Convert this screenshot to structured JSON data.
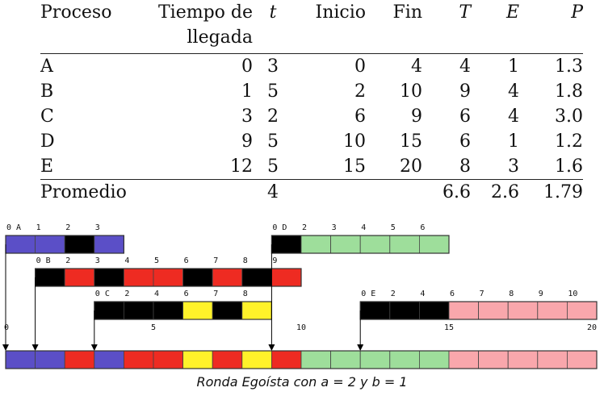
{
  "table": {
    "headers": [
      "Proceso",
      "Tiempo de llegada",
      "t",
      "Inicio",
      "Fin",
      "T",
      "E",
      "P"
    ],
    "rows": [
      [
        "A",
        "0",
        "3",
        "0",
        "4",
        "4",
        "1",
        "1.3"
      ],
      [
        "B",
        "1",
        "5",
        "2",
        "10",
        "9",
        "4",
        "1.8"
      ],
      [
        "C",
        "3",
        "2",
        "6",
        "9",
        "6",
        "4",
        "3.0"
      ],
      [
        "D",
        "9",
        "5",
        "10",
        "15",
        "6",
        "1",
        "1.2"
      ],
      [
        "E",
        "12",
        "5",
        "15",
        "20",
        "8",
        "3",
        "1.6"
      ]
    ],
    "average": [
      "Promedio",
      "",
      "4",
      "",
      "",
      "6.6",
      "2.6",
      "1.79"
    ]
  },
  "schedule": {
    "colors": {
      "A": "#5b4fc7",
      "B": "#ee2b22",
      "C": "#fff22a",
      "D": "#9ede9b",
      "E": "#f9a7ac",
      "wait": "#000000"
    },
    "processes": [
      {
        "name": "A",
        "arrival": 0,
        "slots": [
          "A",
          "A",
          "wait",
          "A"
        ],
        "tick_labels": [
          "0 A",
          "1",
          "2",
          "3"
        ]
      },
      {
        "name": "B",
        "arrival": 1,
        "slots": [
          "wait",
          "B",
          "wait",
          "B",
          "B",
          "wait",
          "B",
          "wait",
          "B"
        ],
        "tick_labels": [
          "0 B",
          "2",
          "3",
          "4",
          "5",
          "6",
          "7",
          "8",
          "9"
        ]
      },
      {
        "name": "C",
        "arrival": 3,
        "slots": [
          "wait",
          "wait",
          "wait",
          "C",
          "wait",
          "C"
        ],
        "tick_labels": [
          "0 C",
          "2",
          "4",
          "6",
          "7",
          "8"
        ]
      },
      {
        "name": "D",
        "arrival": 9,
        "slots": [
          "wait",
          "D",
          "D",
          "D",
          "D",
          "D"
        ],
        "tick_labels": [
          "0 D",
          "2",
          "3",
          "4",
          "5",
          "6"
        ]
      },
      {
        "name": "E",
        "arrival": 12,
        "slots": [
          "wait",
          "wait",
          "wait",
          "E",
          "E",
          "E",
          "E",
          "E"
        ],
        "tick_labels": [
          "0 E",
          "2",
          "4",
          "6",
          "7",
          "8",
          "9",
          "10"
        ]
      }
    ],
    "timeline": {
      "slots": [
        "A",
        "A",
        "B",
        "A",
        "B",
        "B",
        "C",
        "B",
        "C",
        "B",
        "D",
        "D",
        "D",
        "D",
        "D",
        "E",
        "E",
        "E",
        "E",
        "E"
      ],
      "tick_labels": [
        "0",
        "5",
        "10",
        "15",
        "20"
      ]
    }
  },
  "caption": "Ronda Egoísta con a = 2 y b = 1"
}
